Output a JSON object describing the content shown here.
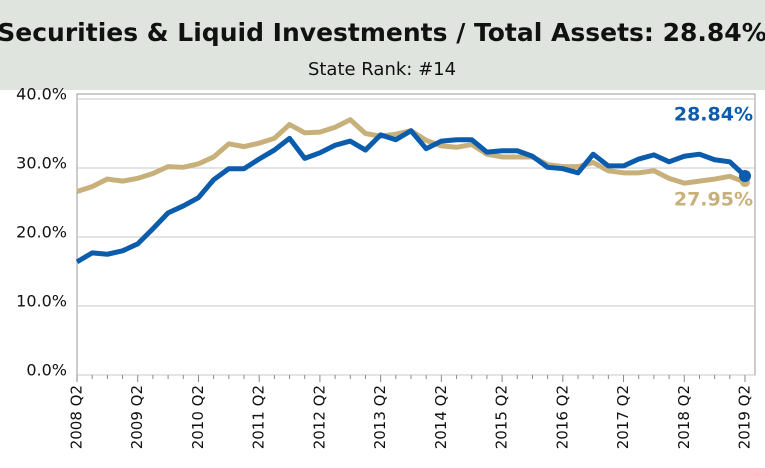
{
  "chart_data": {
    "type": "line",
    "title": "Securities & Liquid Investments / Total Assets: 28.84%",
    "subtitle": "State Rank: #14",
    "categories": [
      "2008 Q2",
      null,
      null,
      null,
      "2009 Q2",
      null,
      null,
      null,
      "2010 Q2",
      null,
      null,
      null,
      "2011 Q2",
      null,
      null,
      null,
      "2012 Q2",
      null,
      null,
      null,
      "2013 Q2",
      null,
      null,
      null,
      "2014 Q2",
      null,
      null,
      null,
      "2015 Q2",
      null,
      null,
      null,
      "2016 Q2",
      null,
      null,
      null,
      "2017 Q2",
      null,
      null,
      null,
      "2018 Q2",
      null,
      null,
      null,
      "2019 Q2"
    ],
    "series": [
      {
        "color": "#0b5cad",
        "values": [
          16.4,
          17.7,
          17.5,
          18.0,
          19.0,
          21.2,
          23.5,
          24.5,
          25.7,
          28.3,
          29.9,
          29.9,
          31.3,
          32.6,
          34.3,
          31.4,
          32.2,
          33.3,
          33.9,
          32.6,
          34.8,
          34.1,
          35.4,
          32.8,
          33.9,
          34.1,
          34.1,
          32.3,
          32.5,
          32.5,
          31.7,
          30.1,
          29.9,
          29.3,
          32.0,
          30.3,
          30.3,
          31.3,
          31.9,
          30.9,
          31.7,
          32.0,
          31.2,
          30.9,
          28.84
        ],
        "value_labels": [
          null,
          null,
          null,
          null,
          null,
          null,
          null,
          null,
          null,
          null,
          null,
          null,
          null,
          null,
          null,
          null,
          null,
          null,
          null,
          null,
          null,
          null,
          null,
          null,
          null,
          null,
          null,
          null,
          null,
          null,
          null,
          null,
          null,
          null,
          null,
          null,
          null,
          null,
          null,
          null,
          null,
          null,
          null,
          null,
          "28.84%"
        ]
      },
      {
        "color": "#c8b07a",
        "values": [
          26.6,
          27.3,
          28.4,
          28.1,
          28.5,
          29.2,
          30.2,
          30.1,
          30.6,
          31.6,
          33.5,
          33.1,
          33.6,
          34.3,
          36.3,
          35.1,
          35.2,
          35.9,
          37.0,
          35.0,
          34.6,
          34.9,
          35.4,
          34.0,
          33.2,
          33.0,
          33.4,
          32.0,
          31.6,
          31.6,
          31.6,
          30.5,
          30.2,
          30.2,
          30.8,
          29.6,
          29.3,
          29.3,
          29.6,
          28.5,
          27.8,
          28.1,
          28.4,
          28.8,
          27.95
        ],
        "value_labels": [
          null,
          null,
          null,
          null,
          null,
          null,
          null,
          null,
          null,
          null,
          null,
          null,
          null,
          null,
          null,
          null,
          null,
          null,
          null,
          null,
          null,
          null,
          null,
          null,
          null,
          null,
          null,
          null,
          null,
          null,
          null,
          null,
          null,
          null,
          null,
          null,
          null,
          null,
          null,
          null,
          null,
          null,
          null,
          null,
          "27.95%"
        ]
      }
    ],
    "ylim": [
      0,
      40
    ],
    "yticks": [
      {
        "value": 0,
        "label": "0.0%"
      },
      {
        "value": 10,
        "label": "10.0%"
      },
      {
        "value": 20,
        "label": "20.0%"
      },
      {
        "value": 30,
        "label": "30.0%"
      },
      {
        "value": 40,
        "label": "40.0%"
      }
    ],
    "grid": true
  }
}
